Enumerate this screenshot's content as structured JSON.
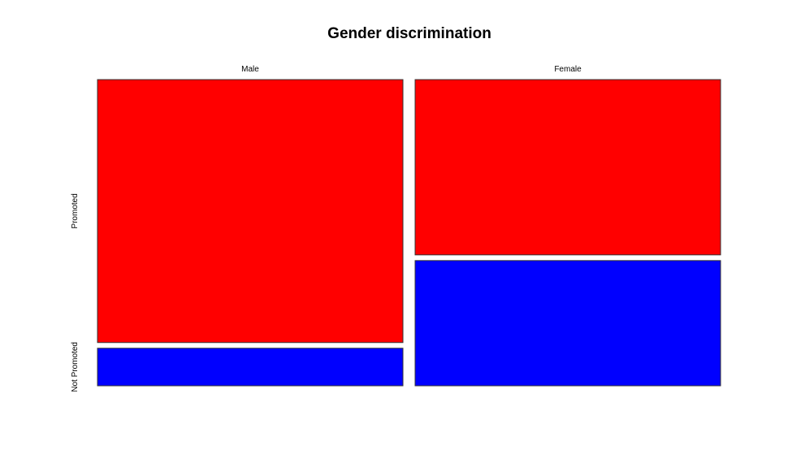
{
  "chart_data": {
    "type": "mosaic",
    "title": "Gender discrimination",
    "columns": [
      "Male",
      "Female"
    ],
    "rows": [
      "Promoted",
      "Not Promoted"
    ],
    "column_shares": [
      0.5,
      0.5
    ],
    "counts": {
      "Male": {
        "Promoted": 21,
        "Not Promoted": 3
      },
      "Female": {
        "Promoted": 14,
        "Not Promoted": 10
      }
    },
    "colors": {
      "Promoted": "#ff0000",
      "Not Promoted": "#0000ff"
    }
  }
}
